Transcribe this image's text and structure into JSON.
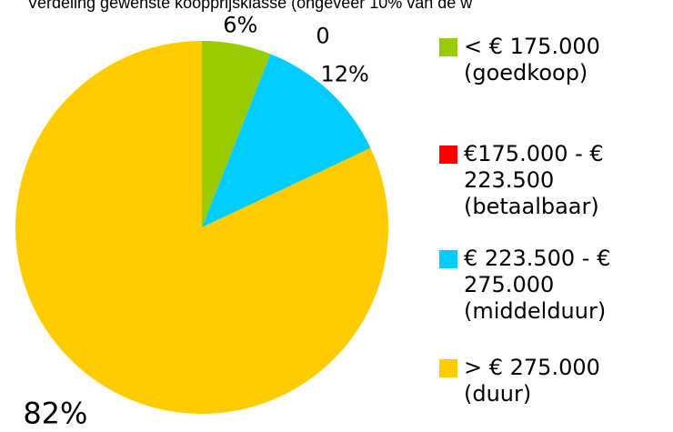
{
  "chart_data": {
    "type": "pie",
    "title": "Verdeling gewenste koopprijsklasse (ongeveer 10% van de w",
    "categories": [
      "< € 175.000 (goedkoop)",
      "€175.000 - € 223.500 (betaalbaar)",
      "€ 223.500 - € 275.000 (middelduur)",
      "> € 275.000 (duur)"
    ],
    "values": [
      6,
      0,
      12,
      82
    ],
    "value_labels": [
      "6%",
      "0",
      "12%",
      "82%"
    ],
    "colors": [
      "#99cc00",
      "#ff0000",
      "#00ccff",
      "#ffcc00"
    ],
    "legend": "right"
  }
}
